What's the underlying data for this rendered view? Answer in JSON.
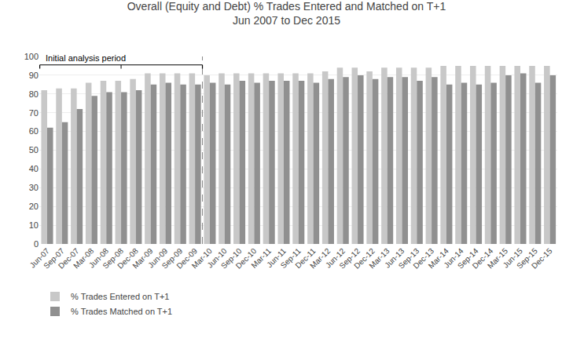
{
  "chart_data": {
    "type": "bar",
    "title": "Overall (Equity and Debt) % Trades Entered and Matched on T+1",
    "subtitle": "Jun 2007 to Dec 2015",
    "categories": [
      "Jun-07",
      "Sep-07",
      "Dec-07",
      "Mar-08",
      "Jun-08",
      "Sep-08",
      "Dec-08",
      "Mar-09",
      "Jun-09",
      "Sep-09",
      "Dec-09",
      "Mar-10",
      "Jun-10",
      "Sep-10",
      "Dec-10",
      "Mar-11",
      "Jun-11",
      "Sep-11",
      "Dec-11",
      "Mar-12",
      "Jun-12",
      "Sep-12",
      "Dec-12",
      "Mar-13",
      "Jun-13",
      "Sep-13",
      "Dec-13",
      "Mar-14",
      "Jun-14",
      "Sep-14",
      "Dec-14",
      "Mar-15",
      "Jun-15",
      "Sep-15",
      "Dec-15"
    ],
    "series": [
      {
        "name": "% Trades Entered on T+1",
        "color": "#c8c8c8",
        "values": [
          82,
          83,
          83,
          86,
          87,
          87,
          88,
          91,
          91,
          91,
          91,
          90,
          91,
          91,
          91,
          91,
          91,
          91,
          91,
          92,
          94,
          94,
          92,
          94,
          94,
          94,
          94,
          95,
          95,
          95,
          95,
          95,
          95,
          95,
          95
        ]
      },
      {
        "name": "% Trades Matched on T+1",
        "color": "#909090",
        "values": [
          62,
          65,
          72,
          79,
          81,
          81,
          82,
          85,
          86,
          85,
          85,
          86,
          85,
          87,
          86,
          87,
          87,
          87,
          86,
          88,
          89,
          90,
          88,
          89,
          89,
          87,
          89,
          85,
          86,
          85,
          86,
          90,
          91,
          86,
          90
        ]
      }
    ],
    "ylim": [
      0,
      100
    ],
    "yticks": [
      0,
      10,
      20,
      30,
      40,
      50,
      60,
      70,
      80,
      90,
      100
    ],
    "grid": true,
    "legend": "bottom",
    "annotations": [
      {
        "text": "Initial analysis period",
        "x": [
          "Jun-07",
          "Dec-09"
        ]
      }
    ]
  }
}
